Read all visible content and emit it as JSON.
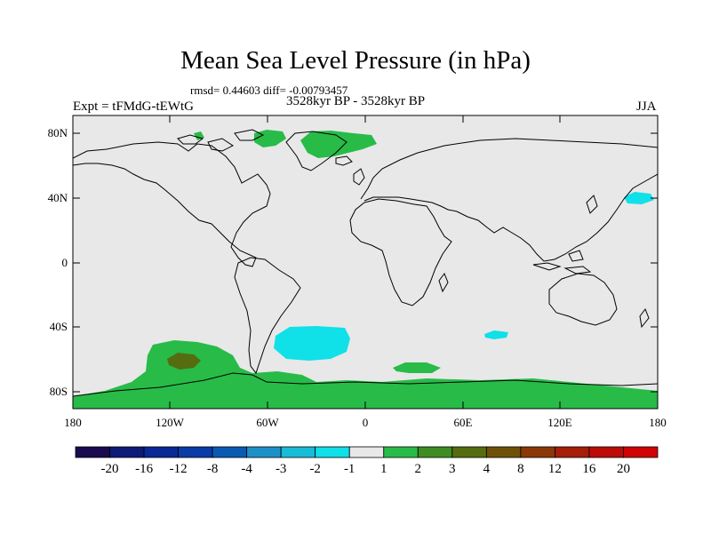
{
  "title": "Mean Sea Level Pressure (in hPa)",
  "stats": "rmsd= 0.44603 diff= -0.00793457",
  "experiment": "Expt = tFMdG-tEWtG",
  "period": "3528kyr BP - 3528kyr BP",
  "season": "JJA",
  "lat_labels": [
    "80N",
    "40N",
    "0",
    "40S",
    "80S"
  ],
  "lon_labels": [
    "180",
    "120W",
    "60W",
    "0",
    "60E",
    "120E",
    "180"
  ],
  "colorbar": {
    "labels": [
      "-20",
      "-16",
      "-12",
      "-8",
      "-4",
      "-3",
      "-2",
      "-1",
      "1",
      "2",
      "3",
      "4",
      "8",
      "12",
      "16",
      "20"
    ],
    "colors": [
      "#1a0a50",
      "#0d1a78",
      "#0a2896",
      "#0a3ca8",
      "#0a5ab4",
      "#1e90c8",
      "#18bcd8",
      "#10e0e8",
      "#e8e8e8",
      "#28bb48",
      "#3e8c24",
      "#556c10",
      "#6e5008",
      "#8a3808",
      "#a41e08",
      "#bc0c08",
      "#d00404"
    ]
  },
  "colors": {
    "ocean_land_neutral": "#e8e8e8",
    "positive_light": "#28bb48",
    "positive_mid": "#556c10",
    "negative_light": "#10e0e8"
  }
}
